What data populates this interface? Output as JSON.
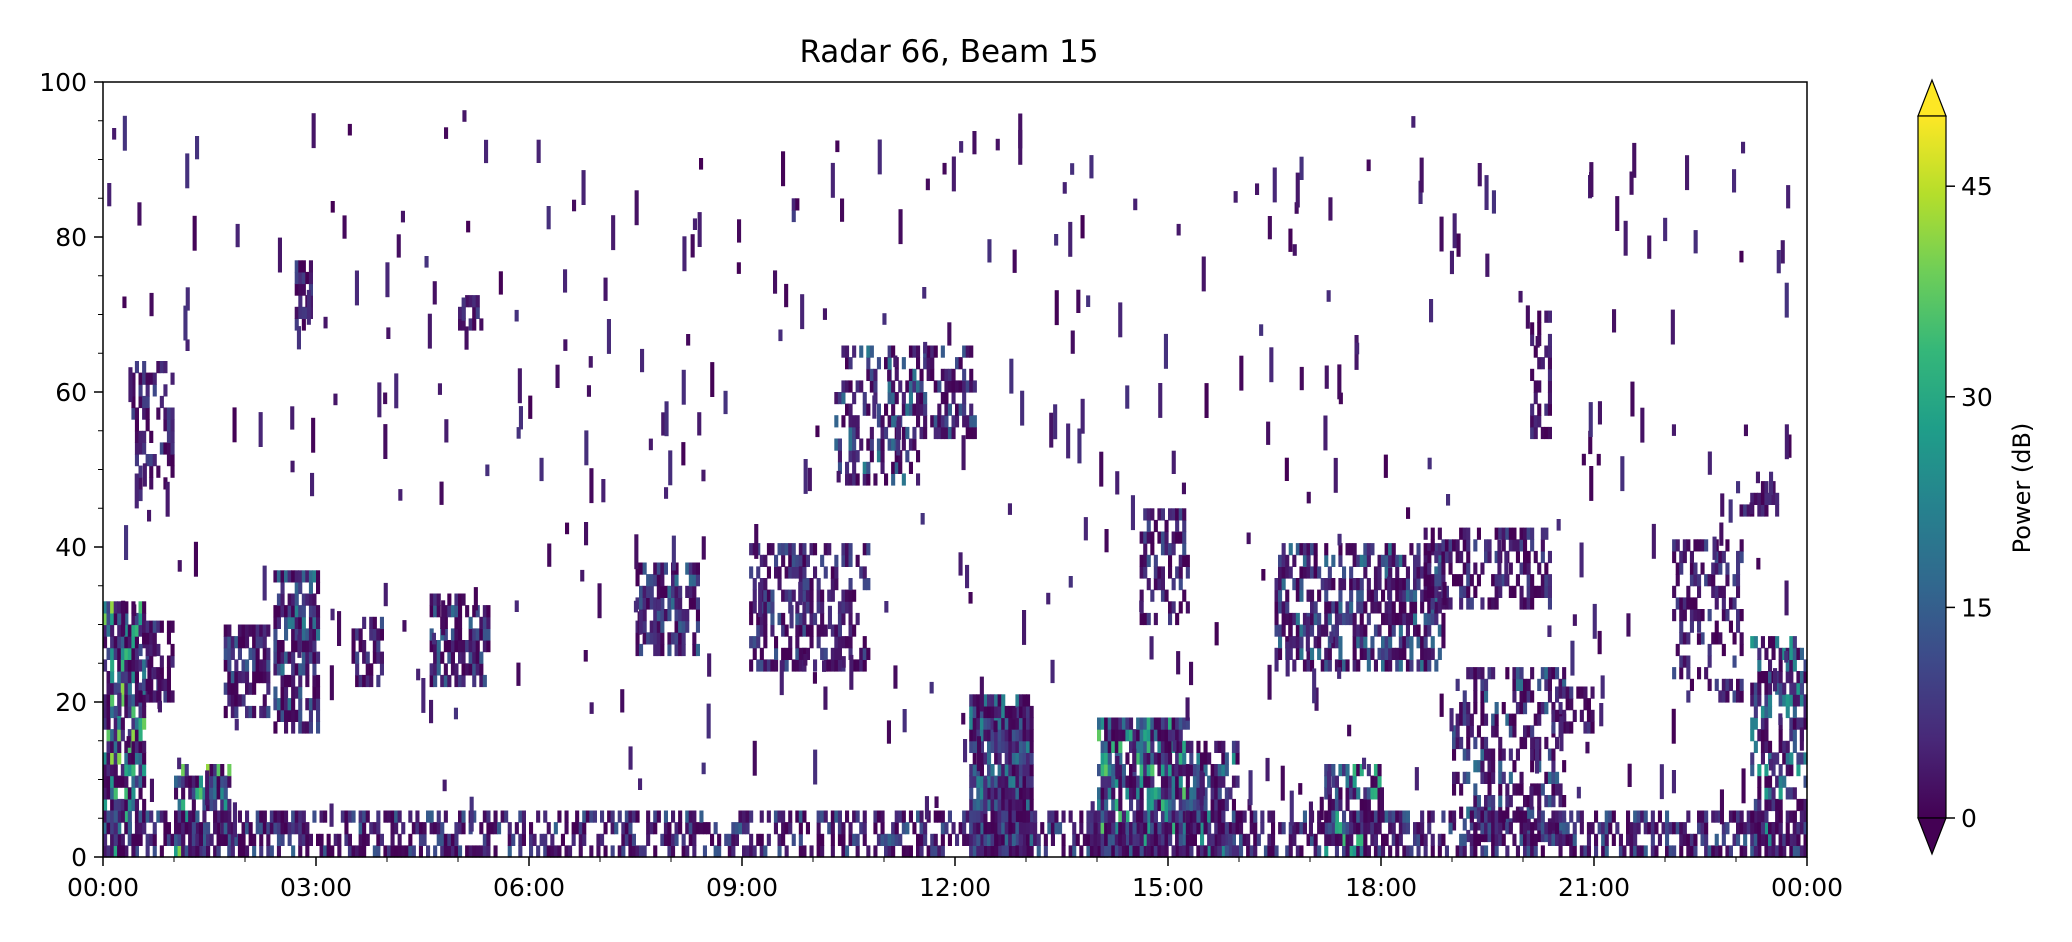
{
  "chart_data": {
    "type": "heatmap",
    "title": "Radar 66, Beam 15",
    "xlabel": "",
    "ylabel": "",
    "x_tick_labels": [
      "00:00",
      "03:00",
      "06:00",
      "09:00",
      "12:00",
      "15:00",
      "18:00",
      "21:00",
      "00:00"
    ],
    "x_range_hours": [
      0,
      24
    ],
    "y_ticks": [
      0,
      20,
      40,
      60,
      80,
      100
    ],
    "ylim": [
      0,
      100
    ],
    "grid": false,
    "colorbar": {
      "label": "Power (dB)",
      "ticks": [
        0,
        15,
        30,
        45
      ],
      "range": [
        0,
        50
      ],
      "extend": "both",
      "colormap": "viridis"
    },
    "colormap_stops": [
      "#440154",
      "#482878",
      "#3e4989",
      "#31688e",
      "#26828e",
      "#1f9e89",
      "#35b779",
      "#6ece58",
      "#b5de2b",
      "#fde725"
    ],
    "background_color": "#ffffff",
    "echo_regions": [
      {
        "t0": 0.0,
        "t1": 0.6,
        "r0": 0,
        "r1": 32,
        "p": 0.8,
        "dbMax": 42
      },
      {
        "t0": 0.4,
        "t1": 1.0,
        "r0": 46,
        "r1": 64,
        "p": 0.45,
        "dbMax": 12
      },
      {
        "t0": 0.5,
        "t1": 1.0,
        "r0": 20,
        "r1": 30,
        "p": 0.6,
        "dbMax": 14
      },
      {
        "t0": 1.0,
        "t1": 1.8,
        "r0": 0,
        "r1": 12,
        "p": 0.75,
        "dbMax": 45
      },
      {
        "t0": 1.7,
        "t1": 2.3,
        "r0": 18,
        "r1": 30,
        "p": 0.7,
        "dbMax": 16
      },
      {
        "t0": 2.4,
        "t1": 3.0,
        "r0": 16,
        "r1": 37,
        "p": 0.75,
        "dbMax": 22
      },
      {
        "t0": 2.7,
        "t1": 2.9,
        "r0": 68,
        "r1": 76,
        "p": 0.5,
        "dbMax": 12
      },
      {
        "t0": 3.5,
        "t1": 3.9,
        "r0": 22,
        "r1": 30,
        "p": 0.7,
        "dbMax": 14
      },
      {
        "t0": 4.6,
        "t1": 5.4,
        "r0": 22,
        "r1": 34,
        "p": 0.7,
        "dbMax": 18
      },
      {
        "t0": 5.0,
        "t1": 5.3,
        "r0": 68,
        "r1": 72,
        "p": 0.45,
        "dbMax": 10
      },
      {
        "t0": 7.5,
        "t1": 8.4,
        "r0": 26,
        "r1": 38,
        "p": 0.65,
        "dbMax": 18
      },
      {
        "t0": 9.1,
        "t1": 9.9,
        "r0": 24,
        "r1": 40,
        "p": 0.6,
        "dbMax": 14
      },
      {
        "t0": 9.8,
        "t1": 10.8,
        "r0": 24,
        "r1": 40,
        "p": 0.5,
        "dbMax": 12
      },
      {
        "t0": 9.7,
        "t1": 9.8,
        "r0": 82,
        "r1": 85,
        "p": 0.6,
        "dbMax": 10
      },
      {
        "t0": 10.3,
        "t1": 11.5,
        "r0": 48,
        "r1": 66,
        "p": 0.45,
        "dbMax": 22
      },
      {
        "t0": 11.5,
        "t1": 12.3,
        "r0": 54,
        "r1": 66,
        "p": 0.6,
        "dbMax": 16
      },
      {
        "t0": 12.2,
        "t1": 13.1,
        "r0": 0,
        "r1": 20,
        "p": 0.95,
        "dbMax": 24
      },
      {
        "t0": 14.0,
        "t1": 15.3,
        "r0": 0,
        "r1": 18,
        "p": 0.85,
        "dbMax": 38
      },
      {
        "t0": 14.6,
        "t1": 15.3,
        "r0": 30,
        "r1": 44,
        "p": 0.55,
        "dbMax": 14
      },
      {
        "t0": 15.3,
        "t1": 16.0,
        "r0": 0,
        "r1": 14,
        "p": 0.75,
        "dbMax": 26
      },
      {
        "t0": 16.5,
        "t1": 18.9,
        "r0": 24,
        "r1": 40,
        "p": 0.6,
        "dbMax": 20
      },
      {
        "t0": 17.2,
        "t1": 18.0,
        "r0": 0,
        "r1": 12,
        "p": 0.7,
        "dbMax": 36
      },
      {
        "t0": 18.6,
        "t1": 20.4,
        "r0": 32,
        "r1": 42,
        "p": 0.5,
        "dbMax": 12
      },
      {
        "t0": 19.0,
        "t1": 20.6,
        "r0": 2,
        "r1": 24,
        "p": 0.45,
        "dbMax": 20
      },
      {
        "t0": 20.4,
        "t1": 21.0,
        "r0": 16,
        "r1": 22,
        "p": 0.5,
        "dbMax": 10
      },
      {
        "t0": 20.1,
        "t1": 20.4,
        "r0": 54,
        "r1": 70,
        "p": 0.45,
        "dbMax": 10
      },
      {
        "t0": 22.1,
        "t1": 23.1,
        "r0": 20,
        "r1": 40,
        "p": 0.45,
        "dbMax": 12
      },
      {
        "t0": 23.0,
        "t1": 23.6,
        "r0": 44,
        "r1": 48,
        "p": 0.55,
        "dbMax": 10
      },
      {
        "t0": 23.2,
        "t1": 24.0,
        "r0": 0,
        "r1": 28,
        "p": 0.6,
        "dbMax": 28
      },
      {
        "t0": 0.0,
        "t1": 24.0,
        "r0": 0,
        "r1": 5,
        "p": 0.55,
        "dbMax": 16
      }
    ]
  }
}
